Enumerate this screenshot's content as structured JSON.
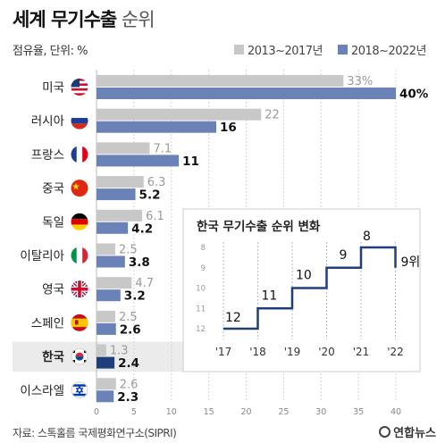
{
  "title_bold": "세계 무기수출",
  "title_light": "순위",
  "unit_label": "점유율, 단위: %",
  "source": "자료: 스톡홀름 국제평화연구소(SIPRI)",
  "brand": "연합뉴스",
  "chart_data": {
    "type": "bar",
    "orientation": "horizontal",
    "categories": [
      "미국",
      "러시아",
      "프랑스",
      "중국",
      "독일",
      "이탈리아",
      "영국",
      "스페인",
      "한국",
      "이스라엘"
    ],
    "series": [
      {
        "name": "2013~2017년",
        "color": "#c8c8c8",
        "labels": [
          "33%",
          "22",
          "7.1",
          "6.3",
          "6.1",
          "2.5",
          "4.7",
          "2.5",
          "1.3",
          "2.6"
        ],
        "values": [
          33,
          22,
          7.1,
          6.3,
          6.1,
          2.5,
          4.7,
          2.5,
          1.3,
          2.6
        ]
      },
      {
        "name": "2018~2022년",
        "color": "#6a82b8",
        "labels": [
          "40%",
          "16",
          "11",
          "5.2",
          "4.2",
          "3.8",
          "3.2",
          "2.6",
          "2.4",
          "2.3"
        ],
        "values": [
          40,
          16,
          11,
          5.2,
          4.2,
          3.8,
          3.2,
          2.6,
          2.4,
          2.3
        ]
      }
    ],
    "highlight_category": "한국",
    "highlight_color": "#1f3f7a",
    "xlim": [
      0,
      40
    ],
    "xticks": [
      0,
      5,
      10,
      15,
      20,
      25,
      30,
      35,
      40
    ],
    "grid": true,
    "legend_position": "top-right"
  },
  "inset_chart": {
    "type": "step-line",
    "title": "한국 무기수출 순위 변화",
    "x": [
      "'17",
      "'18",
      "'19",
      "'20",
      "'21",
      "'22"
    ],
    "y": [
      12,
      11,
      10,
      9,
      8,
      9
    ],
    "labels": [
      "12",
      "11",
      "10",
      "9",
      "8",
      "9위"
    ],
    "yticks": [
      8,
      9,
      10,
      11,
      12
    ],
    "ylim": [
      8,
      12
    ],
    "y_inverted": true,
    "line_color": "#1f3f7a"
  }
}
